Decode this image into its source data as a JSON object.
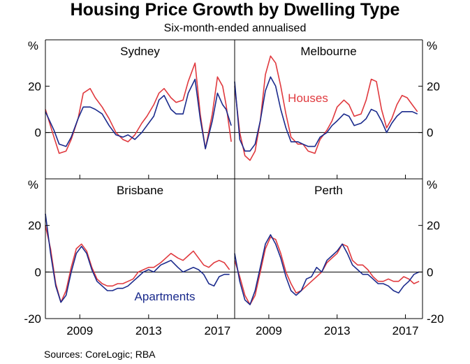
{
  "title": "Housing Price Growth by Dwelling Type",
  "subtitle": "Six-month-ended annualised",
  "source": "Sources: CoreLogic; RBA",
  "colors": {
    "houses": "#e0393e",
    "apartments": "#1a2a8c",
    "axis": "#000000"
  },
  "chart_data": {
    "type": "line",
    "layout": "2x2 panels",
    "x_range": [
      2007.0,
      2018.0
    ],
    "x_ticks": [
      2009,
      2013,
      2017
    ],
    "y_range": [
      -20,
      40
    ],
    "y_ticks": [
      -20,
      0,
      20
    ],
    "y_unit": "%",
    "series_names": {
      "houses": "Houses",
      "apartments": "Apartments"
    },
    "panels": [
      {
        "name": "Sydney",
        "houses": {
          "x": [
            2007.0,
            2007.5,
            2007.8,
            2008.2,
            2008.5,
            2008.9,
            2009.2,
            2009.6,
            2009.9,
            2010.3,
            2010.7,
            2011.1,
            2011.5,
            2011.8,
            2012.2,
            2012.6,
            2012.9,
            2013.3,
            2013.6,
            2013.9,
            2014.3,
            2014.6,
            2015.0,
            2015.3,
            2015.7,
            2016.0,
            2016.3,
            2016.7,
            2017.0,
            2017.3,
            2017.5,
            2017.8
          ],
          "y": [
            10,
            -2,
            -9,
            -8,
            -3,
            6,
            17,
            19,
            15,
            11,
            6,
            0,
            -3,
            -4,
            -1,
            4,
            7,
            12,
            17,
            19,
            15,
            13,
            14,
            22,
            30,
            8,
            -7,
            8,
            24,
            20,
            12,
            -4
          ]
        },
        "apartments": {
          "x": [
            2007.0,
            2007.5,
            2007.8,
            2008.2,
            2008.5,
            2008.9,
            2009.2,
            2009.6,
            2009.9,
            2010.3,
            2010.7,
            2011.1,
            2011.5,
            2011.8,
            2012.2,
            2012.6,
            2012.9,
            2013.3,
            2013.6,
            2013.9,
            2014.3,
            2014.6,
            2015.0,
            2015.3,
            2015.7,
            2016.0,
            2016.3,
            2016.7,
            2017.0,
            2017.3,
            2017.5,
            2017.8
          ],
          "y": [
            9,
            1,
            -5,
            -6,
            -2,
            6,
            11,
            11,
            10,
            8,
            3,
            -1,
            -2,
            -1,
            -3,
            0,
            3,
            7,
            14,
            16,
            10,
            8,
            8,
            17,
            23,
            6,
            -7,
            5,
            17,
            12,
            10,
            3
          ]
        }
      },
      {
        "name": "Melbourne",
        "houses": {
          "x": [
            2007.0,
            2007.3,
            2007.6,
            2007.9,
            2008.2,
            2008.5,
            2008.8,
            2009.1,
            2009.4,
            2009.7,
            2010.0,
            2010.3,
            2010.7,
            2011.0,
            2011.3,
            2011.7,
            2012.0,
            2012.4,
            2012.7,
            2013.0,
            2013.4,
            2013.7,
            2014.0,
            2014.4,
            2014.7,
            2015.0,
            2015.3,
            2015.6,
            2015.9,
            2016.2,
            2016.5,
            2016.8,
            2017.1,
            2017.4,
            2017.7
          ],
          "y": [
            20,
            0,
            -10,
            -12,
            -8,
            5,
            25,
            33,
            30,
            20,
            8,
            -2,
            -5,
            -5,
            -8,
            -9,
            -3,
            1,
            5,
            11,
            14,
            12,
            7,
            8,
            14,
            23,
            22,
            10,
            2,
            6,
            12,
            16,
            15,
            12,
            9
          ]
        },
        "apartments": {
          "x": [
            2007.0,
            2007.3,
            2007.6,
            2007.9,
            2008.2,
            2008.5,
            2008.8,
            2009.1,
            2009.4,
            2009.7,
            2010.0,
            2010.3,
            2010.7,
            2011.0,
            2011.3,
            2011.7,
            2012.0,
            2012.4,
            2012.7,
            2013.0,
            2013.4,
            2013.7,
            2014.0,
            2014.4,
            2014.7,
            2015.0,
            2015.3,
            2015.6,
            2015.9,
            2016.2,
            2016.5,
            2016.8,
            2017.1,
            2017.4,
            2017.7
          ],
          "y": [
            22,
            -3,
            -8,
            -8,
            -5,
            5,
            18,
            24,
            20,
            10,
            2,
            -4,
            -4,
            -5,
            -6,
            -6,
            -2,
            0,
            3,
            5,
            8,
            7,
            3,
            4,
            6,
            10,
            9,
            5,
            0,
            4,
            7,
            9,
            9,
            9,
            8
          ]
        }
      },
      {
        "name": "Brisbane",
        "houses": {
          "x": [
            2007.0,
            2007.3,
            2007.6,
            2007.9,
            2008.2,
            2008.5,
            2008.8,
            2009.1,
            2009.4,
            2009.7,
            2010.0,
            2010.3,
            2010.6,
            2010.9,
            2011.2,
            2011.5,
            2011.8,
            2012.1,
            2012.4,
            2012.7,
            2013.0,
            2013.3,
            2013.7,
            2014.0,
            2014.3,
            2014.7,
            2015.0,
            2015.3,
            2015.6,
            2015.9,
            2016.2,
            2016.5,
            2016.8,
            2017.1,
            2017.4,
            2017.7
          ],
          "y": [
            20,
            10,
            -5,
            -13,
            -8,
            2,
            10,
            12,
            9,
            2,
            -3,
            -5,
            -6,
            -6,
            -5,
            -5,
            -4,
            -3,
            0,
            1,
            2,
            2,
            4,
            6,
            8,
            6,
            5,
            7,
            9,
            6,
            3,
            2,
            4,
            5,
            4,
            1
          ]
        },
        "apartments": {
          "x": [
            2007.0,
            2007.3,
            2007.6,
            2007.9,
            2008.2,
            2008.5,
            2008.8,
            2009.1,
            2009.4,
            2009.7,
            2010.0,
            2010.3,
            2010.6,
            2010.9,
            2011.2,
            2011.5,
            2011.8,
            2012.1,
            2012.4,
            2012.7,
            2013.0,
            2013.3,
            2013.7,
            2014.0,
            2014.3,
            2014.7,
            2015.0,
            2015.3,
            2015.6,
            2015.9,
            2016.2,
            2016.5,
            2016.8,
            2017.1,
            2017.4,
            2017.7
          ],
          "y": [
            25,
            8,
            -6,
            -13,
            -10,
            0,
            8,
            11,
            8,
            1,
            -4,
            -6,
            -8,
            -8,
            -7,
            -7,
            -6,
            -4,
            -2,
            0,
            1,
            0,
            3,
            4,
            5,
            2,
            0,
            1,
            2,
            1,
            -1,
            -5,
            -6,
            -2,
            -1,
            -1
          ]
        }
      },
      {
        "name": "Perth",
        "houses": {
          "x": [
            2007.0,
            2007.3,
            2007.6,
            2007.9,
            2008.2,
            2008.5,
            2008.8,
            2009.1,
            2009.4,
            2009.7,
            2010.0,
            2010.3,
            2010.6,
            2010.9,
            2011.2,
            2011.5,
            2011.8,
            2012.1,
            2012.4,
            2012.7,
            2013.0,
            2013.3,
            2013.6,
            2013.9,
            2014.2,
            2014.5,
            2014.8,
            2015.1,
            2015.4,
            2015.7,
            2016.0,
            2016.3,
            2016.6,
            2016.9,
            2017.2,
            2017.5,
            2017.8
          ],
          "y": [
            5,
            -2,
            -10,
            -14,
            -10,
            0,
            10,
            15,
            14,
            8,
            0,
            -5,
            -9,
            -8,
            -6,
            -4,
            -2,
            0,
            4,
            6,
            8,
            12,
            11,
            5,
            3,
            3,
            1,
            -2,
            -4,
            -4,
            -3,
            -4,
            -4,
            -2,
            -3,
            -5,
            -4
          ]
        },
        "apartments": {
          "x": [
            2007.0,
            2007.3,
            2007.6,
            2007.9,
            2008.2,
            2008.5,
            2008.8,
            2009.1,
            2009.4,
            2009.7,
            2010.0,
            2010.3,
            2010.6,
            2010.9,
            2011.2,
            2011.5,
            2011.8,
            2012.1,
            2012.4,
            2012.7,
            2013.0,
            2013.3,
            2013.6,
            2013.9,
            2014.2,
            2014.5,
            2014.8,
            2015.1,
            2015.4,
            2015.7,
            2016.0,
            2016.3,
            2016.6,
            2016.9,
            2017.2,
            2017.5,
            2017.8
          ],
          "y": [
            8,
            -4,
            -12,
            -14,
            -8,
            2,
            12,
            16,
            12,
            6,
            -2,
            -8,
            -10,
            -8,
            -3,
            -2,
            2,
            0,
            5,
            7,
            9,
            12,
            8,
            3,
            1,
            -1,
            -1,
            -3,
            -5,
            -5,
            -6,
            -8,
            -9,
            -6,
            -4,
            -1,
            0
          ]
        }
      }
    ],
    "annotations": [
      {
        "text": "Houses",
        "panel": "Melbourne",
        "series": "houses"
      },
      {
        "text": "Apartments",
        "panel": "Brisbane",
        "series": "apartments"
      }
    ]
  }
}
